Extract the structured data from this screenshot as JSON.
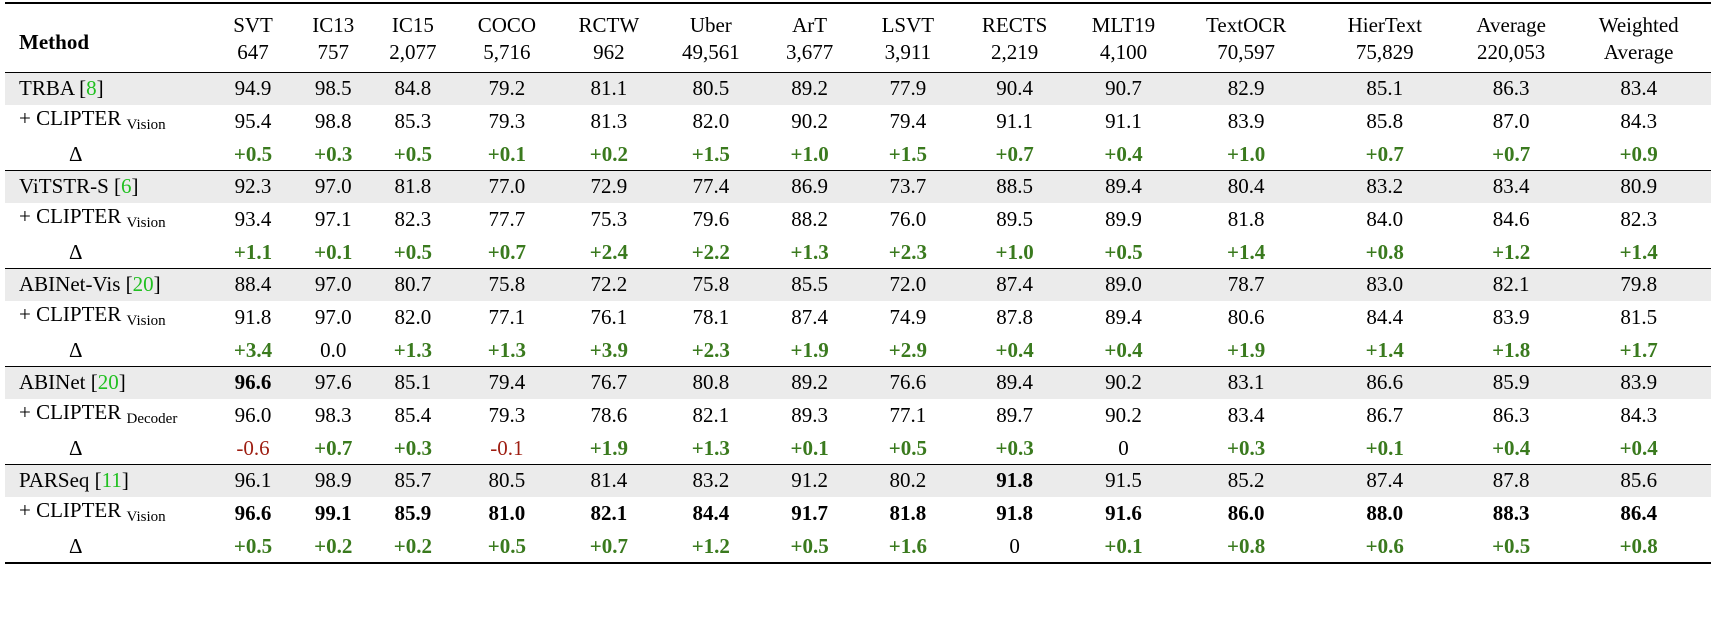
{
  "columns": [
    {
      "name": "SVT",
      "count": "647"
    },
    {
      "name": "IC13",
      "count": "757"
    },
    {
      "name": "IC15",
      "count": "2,077"
    },
    {
      "name": "COCO",
      "count": "5,716"
    },
    {
      "name": "RCTW",
      "count": "962"
    },
    {
      "name": "Uber",
      "count": "49,561"
    },
    {
      "name": "ArT",
      "count": "3,677"
    },
    {
      "name": "LSVT",
      "count": "3,911"
    },
    {
      "name": "RECTS",
      "count": "2,219"
    },
    {
      "name": "MLT19",
      "count": "4,100"
    },
    {
      "name": "TextOCR",
      "count": "70,597"
    },
    {
      "name": "HierText",
      "count": "75,829"
    },
    {
      "name": "Average",
      "count": "220,053"
    },
    {
      "name": "Weighted",
      "count": "Average"
    }
  ],
  "method_header": "Method",
  "groups": [
    {
      "base": {
        "name": "TRBA [",
        "cite": "8",
        "close": "]",
        "values": [
          "94.9",
          "98.5",
          "84.8",
          "79.2",
          "81.1",
          "80.5",
          "89.2",
          "77.9",
          "90.4",
          "90.7",
          "82.9",
          "85.1",
          "86.3",
          "83.4"
        ],
        "bold": []
      },
      "plus": {
        "name": "+ CLIPTER",
        "sub": "Vision",
        "values": [
          "95.4",
          "98.8",
          "85.3",
          "79.3",
          "81.3",
          "82.0",
          "90.2",
          "79.4",
          "91.1",
          "91.1",
          "83.9",
          "85.8",
          "87.0",
          "84.3"
        ],
        "bold": []
      },
      "delta": {
        "symbol": "Δ",
        "values": [
          "+0.5",
          "+0.3",
          "+0.5",
          "+0.1",
          "+0.2",
          "+1.5",
          "+1.0",
          "+1.5",
          "+0.7",
          "+0.4",
          "+1.0",
          "+0.7",
          "+0.7",
          "+0.9"
        ]
      }
    },
    {
      "base": {
        "name": "ViTSTR-S [",
        "cite": "6",
        "close": "]",
        "values": [
          "92.3",
          "97.0",
          "81.8",
          "77.0",
          "72.9",
          "77.4",
          "86.9",
          "73.7",
          "88.5",
          "89.4",
          "80.4",
          "83.2",
          "83.4",
          "80.9"
        ],
        "bold": []
      },
      "plus": {
        "name": "+ CLIPTER",
        "sub": "Vision",
        "values": [
          "93.4",
          "97.1",
          "82.3",
          "77.7",
          "75.3",
          "79.6",
          "88.2",
          "76.0",
          "89.5",
          "89.9",
          "81.8",
          "84.0",
          "84.6",
          "82.3"
        ],
        "bold": []
      },
      "delta": {
        "symbol": "Δ",
        "values": [
          "+1.1",
          "+0.1",
          "+0.5",
          "+0.7",
          "+2.4",
          "+2.2",
          "+1.3",
          "+2.3",
          "+1.0",
          "+0.5",
          "+1.4",
          "+0.8",
          "+1.2",
          "+1.4"
        ]
      }
    },
    {
      "base": {
        "name": "ABINet-Vis [",
        "cite": "20",
        "close": "]",
        "values": [
          "88.4",
          "97.0",
          "80.7",
          "75.8",
          "72.2",
          "75.8",
          "85.5",
          "72.0",
          "87.4",
          "89.0",
          "78.7",
          "83.0",
          "82.1",
          "79.8"
        ],
        "bold": []
      },
      "plus": {
        "name": "+ CLIPTER",
        "sub": "Vision",
        "values": [
          "91.8",
          "97.0",
          "82.0",
          "77.1",
          "76.1",
          "78.1",
          "87.4",
          "74.9",
          "87.8",
          "89.4",
          "80.6",
          "84.4",
          "83.9",
          "81.5"
        ],
        "bold": []
      },
      "delta": {
        "symbol": "Δ",
        "values": [
          "+3.4",
          "0.0",
          "+1.3",
          "+1.3",
          "+3.9",
          "+2.3",
          "+1.9",
          "+2.9",
          "+0.4",
          "+0.4",
          "+1.9",
          "+1.4",
          "+1.8",
          "+1.7"
        ]
      }
    },
    {
      "base": {
        "name": "ABINet [",
        "cite": "20",
        "close": "]",
        "values": [
          "96.6",
          "97.6",
          "85.1",
          "79.4",
          "76.7",
          "80.8",
          "89.2",
          "76.6",
          "89.4",
          "90.2",
          "83.1",
          "86.6",
          "85.9",
          "83.9"
        ],
        "bold": [
          0
        ]
      },
      "plus": {
        "name": "+ CLIPTER",
        "sub": "Decoder",
        "values": [
          "96.0",
          "98.3",
          "85.4",
          "79.3",
          "78.6",
          "82.1",
          "89.3",
          "77.1",
          "89.7",
          "90.2",
          "83.4",
          "86.7",
          "86.3",
          "84.3"
        ],
        "bold": []
      },
      "delta": {
        "symbol": "Δ",
        "values": [
          "-0.6",
          "+0.7",
          "+0.3",
          "-0.1",
          "+1.9",
          "+1.3",
          "+0.1",
          "+0.5",
          "+0.3",
          "0",
          "+0.3",
          "+0.1",
          "+0.4",
          "+0.4"
        ]
      }
    },
    {
      "base": {
        "name": "PARSeq [",
        "cite": "11",
        "close": "]",
        "values": [
          "96.1",
          "98.9",
          "85.7",
          "80.5",
          "81.4",
          "83.2",
          "91.2",
          "80.2",
          "91.8",
          "91.5",
          "85.2",
          "87.4",
          "87.8",
          "85.6"
        ],
        "bold": [
          8
        ]
      },
      "plus": {
        "name": "+ CLIPTER",
        "sub": "Vision",
        "values": [
          "96.6",
          "99.1",
          "85.9",
          "81.0",
          "82.1",
          "84.4",
          "91.7",
          "81.8",
          "91.8",
          "91.6",
          "86.0",
          "88.0",
          "88.3",
          "86.4"
        ],
        "bold": [
          0,
          1,
          2,
          3,
          4,
          5,
          6,
          7,
          8,
          9,
          10,
          11,
          12,
          13
        ]
      },
      "delta": {
        "symbol": "Δ",
        "values": [
          "+0.5",
          "+0.2",
          "+0.2",
          "+0.5",
          "+0.7",
          "+1.2",
          "+0.5",
          "+1.6",
          "0",
          "+0.1",
          "+0.8",
          "+0.6",
          "+0.5",
          "+0.8"
        ]
      }
    }
  ],
  "colors": {
    "citation": "#21c021",
    "positive_delta": "#3a7a1e",
    "negative_delta": "#9e1e12",
    "row_shade": "#ebebeb"
  }
}
